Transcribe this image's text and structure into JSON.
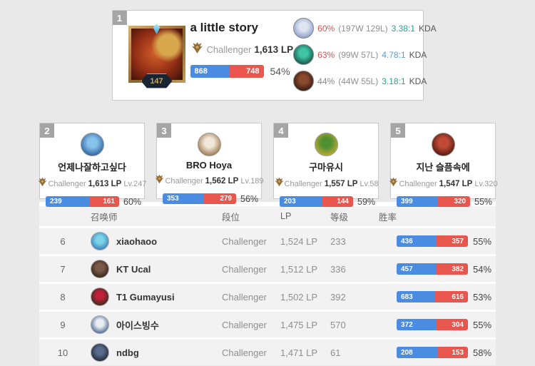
{
  "colors": {
    "win_blue": "#4a8ce2",
    "loss_red": "#e8564e",
    "hot_red": "#d9534f",
    "teal": "#2ca089",
    "kda_blue": "#5b9bd5",
    "muted_gray": "#888888"
  },
  "top_player": {
    "rank": "1",
    "name": "a little story",
    "tier": "Challenger",
    "lp": "1,613 LP",
    "level": "147",
    "wins": 868,
    "losses": 748,
    "winrate": "54%",
    "avatar_colors": [
      "#d4602a",
      "#38100a"
    ],
    "champions": [
      {
        "icon": "champion-icon-1",
        "icon_colors": [
          "#dfe5f2",
          "#7e8fc0"
        ],
        "winrate": "60%",
        "winrate_color": "#d9534f",
        "record": "(197W 129L)",
        "kda": "3.38:1",
        "kda_color": "#2ca089",
        "kda_label": "KDA"
      },
      {
        "icon": "champion-icon-2",
        "icon_colors": [
          "#3fc4a4",
          "#0e3f38"
        ],
        "winrate": "63%",
        "winrate_color": "#d9534f",
        "record": "(99W 57L)",
        "kda": "4.78:1",
        "kda_color": "#5b9bd5",
        "kda_label": "KDA"
      },
      {
        "icon": "champion-icon-3",
        "icon_colors": [
          "#8a4a2e",
          "#26120c"
        ],
        "winrate": "44%",
        "winrate_color": "#888888",
        "record": "(44W 55L)",
        "kda": "3.18:1",
        "kda_color": "#2ca089",
        "kda_label": "KDA"
      }
    ]
  },
  "cards": [
    {
      "rank": "2",
      "name": "언제나잘하고싶다",
      "tier": "Challenger",
      "lp": "1,613 LP",
      "level": "Lv.247",
      "wins": 239,
      "losses": 161,
      "winrate": "60%",
      "avatar_colors": [
        "#86c2ec",
        "#1c4f90"
      ]
    },
    {
      "rank": "3",
      "name": "BRO Hoya",
      "tier": "Challenger",
      "lp": "1,562 LP",
      "level": "Lv.189",
      "wins": 353,
      "losses": 279,
      "winrate": "56%",
      "avatar_colors": [
        "#f2e8d8",
        "#8a5f33"
      ]
    },
    {
      "rank": "4",
      "name": "구마유시",
      "tier": "Challenger",
      "lp": "1,557 LP",
      "level": "Lv.58",
      "wins": 203,
      "losses": 144,
      "winrate": "59%",
      "avatar_colors": [
        "#4e8f2f",
        "#d4af37"
      ]
    },
    {
      "rank": "5",
      "name": "지난 슬픔속에",
      "tier": "Challenger",
      "lp": "1,547 LP",
      "level": "Lv.320",
      "wins": 399,
      "losses": 320,
      "winrate": "55%",
      "avatar_colors": [
        "#c04a36",
        "#3c100a"
      ]
    }
  ],
  "table": {
    "headers": {
      "summoner": "召唤师",
      "tier": "段位",
      "lp": "LP",
      "level": "等级",
      "winrate": "胜率"
    },
    "rows": [
      {
        "rank": "6",
        "name": "xiaohaoo",
        "tier": "Challenger",
        "lp": "1,524 LP",
        "level": "233",
        "wins": 436,
        "losses": 357,
        "winrate": "55%",
        "avatar_colors": [
          "#7cd4e8",
          "#2e6cb0"
        ]
      },
      {
        "rank": "7",
        "name": "KT Ucal",
        "tier": "Challenger",
        "lp": "1,512 LP",
        "level": "336",
        "wins": 457,
        "losses": 382,
        "winrate": "54%",
        "avatar_colors": [
          "#7a5a48",
          "#2a1a12"
        ]
      },
      {
        "rank": "8",
        "name": "T1 Gumayusi",
        "tier": "Challenger",
        "lp": "1,502 LP",
        "level": "392",
        "wins": 683,
        "losses": 616,
        "winrate": "53%",
        "avatar_colors": [
          "#c0203a",
          "#16331a"
        ]
      },
      {
        "rank": "9",
        "name": "아이스빙수",
        "tier": "Challenger",
        "lp": "1,475 LP",
        "level": "570",
        "wins": 372,
        "losses": 304,
        "winrate": "55%",
        "avatar_colors": [
          "#e8eef2",
          "#2e4f80"
        ]
      },
      {
        "rank": "10",
        "name": "ndbg",
        "tier": "Challenger",
        "lp": "1,471 LP",
        "level": "61",
        "wins": 208,
        "losses": 153,
        "winrate": "58%",
        "avatar_colors": [
          "#5a6a8a",
          "#161d2c"
        ]
      }
    ]
  }
}
